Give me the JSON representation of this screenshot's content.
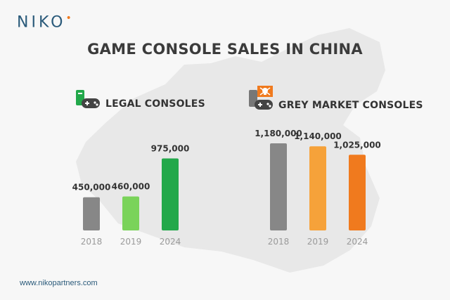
{
  "logo": {
    "text": "NIKO",
    "dot": "•"
  },
  "title": "GAME CONSOLE SALES IN CHINA",
  "footer": "www.nikopartners.com",
  "icons": {
    "legal": "controller-icon",
    "grey": "controller-skull-icon"
  },
  "colors": {
    "legal": [
      "#878787",
      "#7ad35a",
      "#22a84a"
    ],
    "grey": [
      "#878787",
      "#f6a23a",
      "#f07a1e"
    ],
    "map": "#e6e6e6"
  },
  "chart_data": [
    {
      "type": "bar",
      "title": "LEGAL CONSOLES",
      "categories": [
        "2018",
        "2019",
        "2024"
      ],
      "values": [
        450000,
        460000,
        975000
      ],
      "labels": [
        "450,000",
        "460,000",
        "975,000"
      ],
      "ylim": [
        0,
        1180000
      ],
      "grid": false
    },
    {
      "type": "bar",
      "title": "GREY MARKET CONSOLES",
      "categories": [
        "2018",
        "2019",
        "2024"
      ],
      "values": [
        1180000,
        1140000,
        1025000
      ],
      "labels": [
        "1,180,000",
        "1,140,000",
        "1,025,000"
      ],
      "ylim": [
        0,
        1180000
      ],
      "grid": false
    }
  ]
}
